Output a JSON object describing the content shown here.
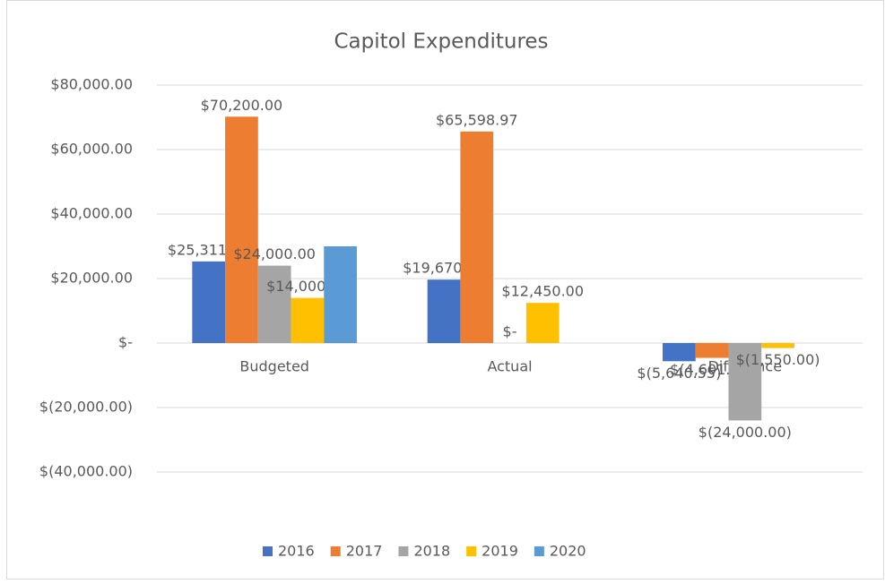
{
  "chart_data": {
    "type": "bar",
    "title": "Capitol Expenditures",
    "categories": [
      "Budgeted",
      "Actual",
      "Difference"
    ],
    "series": [
      {
        "name": "2016",
        "color": "#4472c4",
        "values": [
          25311,
          19670.45,
          -5640.55
        ],
        "value_labels": [
          "$25,311.00",
          "$19,670.45",
          "$(5,640.55)"
        ]
      },
      {
        "name": "2017",
        "color": "#ed7d31",
        "values": [
          70200,
          65598.97,
          -4601.03
        ],
        "value_labels": [
          "$70,200.00",
          "$65,598.97",
          "$(4,601.03)"
        ]
      },
      {
        "name": "2018",
        "color": "#a5a5a5",
        "values": [
          24000,
          0,
          -24000
        ],
        "value_labels": [
          "$24,000.00",
          "$-",
          "$(24,000.00)"
        ]
      },
      {
        "name": "2019",
        "color": "#ffc000",
        "values": [
          14000,
          12450,
          -1550
        ],
        "value_labels": [
          "$14,000.00",
          "$12,450.00",
          "$(1,550.00)"
        ]
      },
      {
        "name": "2020",
        "color": "#5b9bd5",
        "values": [
          30000,
          null,
          null
        ],
        "value_labels": [
          null,
          null,
          null
        ]
      }
    ],
    "ylim": [
      -40000,
      80000
    ],
    "yticks": [
      {
        "value": -40000,
        "label": "$(40,000.00)"
      },
      {
        "value": -20000,
        "label": "$(20,000.00)"
      },
      {
        "value": 0,
        "label": "$-"
      },
      {
        "value": 20000,
        "label": "$20,000.00"
      },
      {
        "value": 40000,
        "label": "$40,000.00"
      },
      {
        "value": 60000,
        "label": "$60,000.00"
      },
      {
        "value": 80000,
        "label": "$80,000.00"
      }
    ],
    "grid": true,
    "legend": "bottom"
  }
}
